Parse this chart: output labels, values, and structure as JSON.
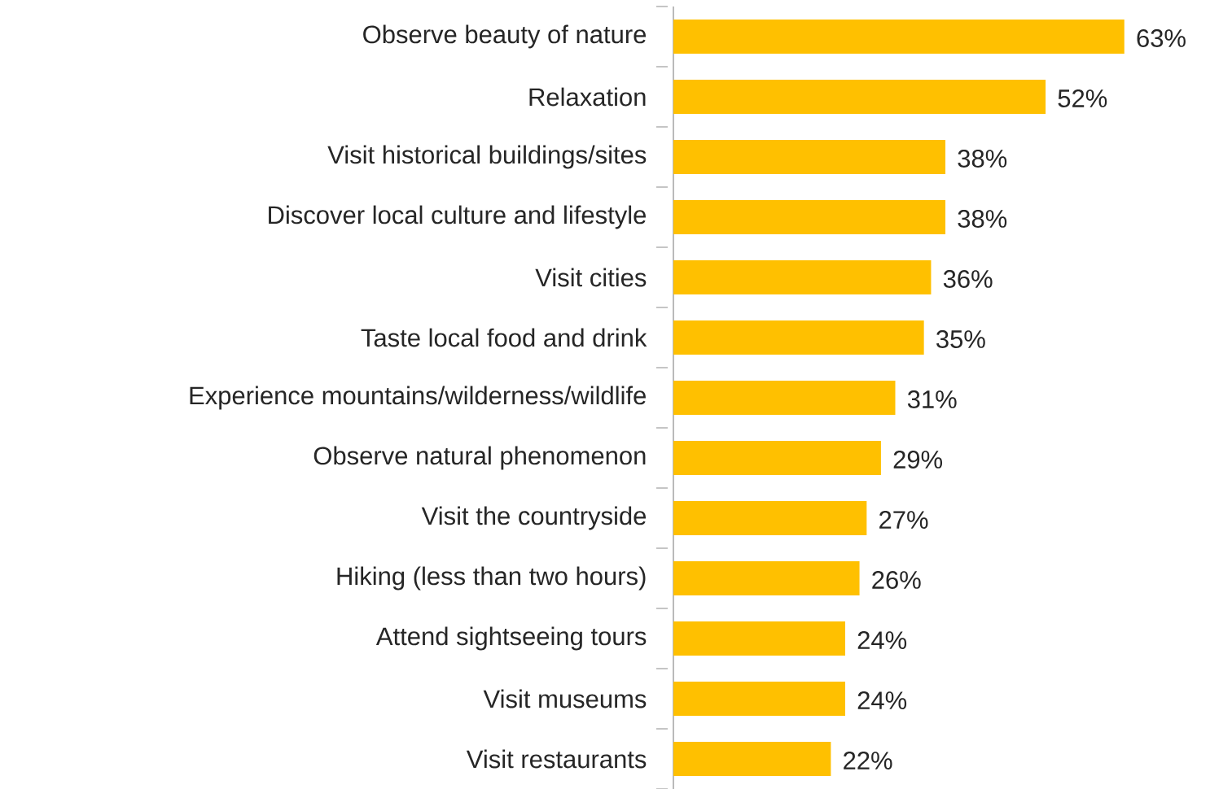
{
  "chart_data": {
    "type": "bar",
    "orientation": "horizontal",
    "categories": [
      "Observe beauty of nature",
      "Relaxation",
      "Visit historical buildings/sites",
      "Discover local culture and lifestyle",
      "Visit cities",
      "Taste local food and drink",
      "Experience mountains/wilderness/wildlife",
      "Observe natural phenomenon",
      "Visit the countryside",
      "Hiking (less than two hours)",
      "Attend sightseeing tours",
      "Visit museums",
      "Visit restaurants"
    ],
    "values": [
      63,
      52,
      38,
      38,
      36,
      35,
      31,
      29,
      27,
      26,
      24,
      24,
      22
    ],
    "value_labels": [
      "63%",
      "52%",
      "38%",
      "38%",
      "36%",
      "35%",
      "31%",
      "29%",
      "27%",
      "26%",
      "24%",
      "24%",
      "22%"
    ],
    "color": "#ffc000"
  }
}
